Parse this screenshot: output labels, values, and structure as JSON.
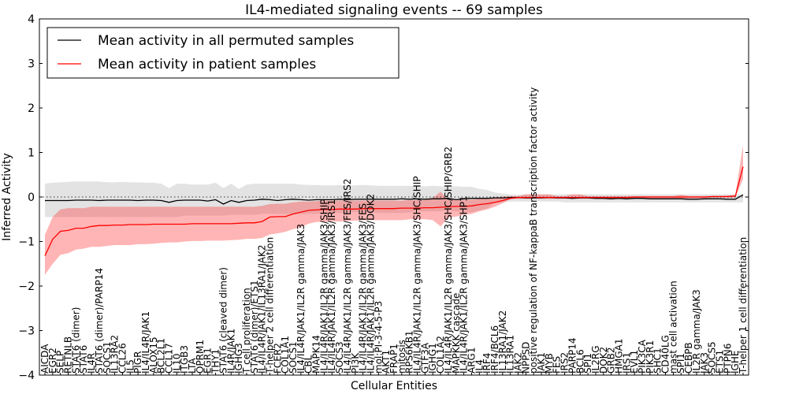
{
  "chart_data": {
    "type": "line",
    "title": "IL4-mediated signaling events -- 69 samples",
    "xlabel": "Cellular Entities",
    "ylabel": "Inferred Activity",
    "ylim": [
      -4,
      4
    ],
    "yticks": [
      -4,
      -3,
      -2,
      -1,
      0,
      1,
      2,
      3,
      4
    ],
    "ytick_labels": [
      "−4",
      "−3",
      "−2",
      "−1",
      "0",
      "1",
      "2",
      "3",
      "4"
    ],
    "grid": false,
    "reference_line": {
      "y": 0,
      "style": "dotted"
    },
    "legend": {
      "position": "top-left",
      "entries": [
        {
          "label": "Mean activity in all permuted samples",
          "color": "#000000"
        },
        {
          "label": "Mean activity in patient samples",
          "color": "#ff0000"
        }
      ]
    },
    "categories": [
      "AICDA",
      "EGR2",
      "SELP",
      "RETNLB",
      "STAT6 (dimer)",
      "STAT6",
      "IL4R",
      "STAT6 (dimer)/PARP14",
      "SOCS1",
      "IL13RA2",
      "CCL26",
      "IL5",
      "PIGR",
      "IL4/IL4R/JAK1",
      "ALOX15",
      "BCL2L1",
      "CCL17",
      "IL10",
      "ITGB3",
      "LTA",
      "OPRM1",
      "EGR1",
      "THY1",
      "STAT6 (cleaved dimer)",
      "IL4R/JAK1",
      "IGHG3",
      "T cell proliferation",
      "STAT6 (dimer)/ETS1",
      "IL4/IL4R/JAK1/IL13RA1/JAK2",
      "T-helper 2 cell differentiation",
      "FCER2",
      "COL1A1",
      "SOCS1",
      "IL4/IL4R/JAK1/IL2R gamma/JAK3",
      "CBL",
      "MAPK14",
      "IL4/IL4R/JAK1/IL2R gamma/JAK3/SHIP",
      "IL4/IL4R/JAK1/IL2R gamma/JAK3/IRS1",
      "SOCS3",
      "IL4/IL4R/JAK1/IL2R gamma/JAK3/FES/IRS2",
      "PI3K",
      "IL4/IL4R/JAK1/IL2R gamma/JAK3/FES",
      "IL4/IL4R/JAK1/IL2R gamma/JAK3/DOK2",
      "mol:PI-3-4-5-P3",
      "AKT1",
      "FRAP1",
      "mitosis",
      "RPS6KB1",
      "IL4/IL4R/JAK1/IL2R gamma/JAK3/SHC/SHIP",
      "GTF3A",
      "IGHG1",
      "COL1A2",
      "IL4/IL4R/JAK1/IL2R gamma/JAK3/SHC/SHIP/GRB2",
      "MAPKKK cascade",
      "IL4/IL4R/JAK1/IL2R gamma/JAK3/SHP1",
      "ARG1",
      "IL4",
      "IRF4",
      "IRF4/BCL6",
      "IL13RA1/JAK2",
      "IL13RA1",
      "JAK2",
      "NPPSD",
      "positive regulation of NF-kappaB transcription factor activity",
      "JAK1",
      "MYB",
      "FES",
      "IRS2",
      "PARP14",
      "BCL6",
      "SPI1",
      "IL2RG",
      "DOK2",
      "GRB2",
      "HMGA1",
      "IRS1",
      "EVL1",
      "PIK3CA",
      "PIK3R1",
      "SHC1",
      "CD40LG",
      "mast cell activation",
      "SPI1",
      "CEBPB",
      "IL2R gamma/JAK3",
      "JAK3",
      "SOCS5",
      "ETS1",
      "PTPN6",
      "IGHE",
      "T-helper 1 cell differentiation"
    ],
    "series": [
      {
        "name": "Mean activity in all permuted samples",
        "color": "#000000",
        "values": [
          -0.08,
          -0.08,
          -0.08,
          -0.08,
          -0.07,
          -0.07,
          -0.07,
          -0.08,
          -0.07,
          -0.07,
          -0.07,
          -0.07,
          -0.08,
          -0.07,
          -0.07,
          -0.08,
          -0.12,
          -0.08,
          -0.07,
          -0.07,
          -0.07,
          -0.09,
          -0.06,
          -0.16,
          -0.08,
          -0.12,
          -0.08,
          -0.07,
          -0.05,
          -0.06,
          -0.08,
          -0.06,
          -0.05,
          -0.06,
          -0.07,
          -0.06,
          -0.06,
          -0.06,
          -0.05,
          -0.06,
          -0.05,
          -0.05,
          -0.05,
          -0.05,
          -0.05,
          -0.05,
          -0.04,
          -0.05,
          -0.04,
          -0.05,
          -0.04,
          -0.04,
          -0.03,
          -0.06,
          -0.04,
          -0.03,
          -0.03,
          -0.03,
          -0.02,
          -0.02,
          -0.01,
          -0.01,
          -0.02,
          -0.02,
          -0.02,
          -0.01,
          -0.02,
          -0.02,
          -0.03,
          -0.02,
          -0.02,
          -0.03,
          -0.03,
          -0.04,
          -0.03,
          -0.04,
          -0.03,
          -0.03,
          -0.04,
          -0.04,
          -0.04,
          -0.04,
          -0.04,
          -0.05,
          -0.05,
          -0.04,
          -0.04,
          -0.04,
          -0.05,
          -0.05,
          0.05
        ],
        "band": {
          "upper": [
            0.3,
            0.32,
            0.33,
            0.34,
            0.35,
            0.35,
            0.35,
            0.35,
            0.33,
            0.33,
            0.34,
            0.33,
            0.33,
            0.32,
            0.32,
            0.3,
            0.2,
            0.3,
            0.3,
            0.28,
            0.28,
            0.28,
            0.32,
            0.2,
            0.3,
            0.18,
            0.28,
            0.3,
            0.3,
            0.3,
            0.3,
            0.3,
            0.3,
            0.28,
            0.27,
            0.27,
            0.26,
            0.26,
            0.27,
            0.26,
            0.26,
            0.27,
            0.26,
            0.25,
            0.25,
            0.25,
            0.25,
            0.25,
            0.24,
            0.24,
            0.25,
            0.24,
            0.24,
            0.24,
            0.23,
            0.23,
            0.18,
            0.16,
            0.1,
            0.08,
            0.06,
            0.05,
            0.06,
            0.06,
            0.06,
            0.06,
            0.06,
            0.06,
            0.06,
            0.06,
            0.06,
            0.06,
            0.06,
            0.06,
            0.06,
            0.06,
            0.06,
            0.06,
            0.06,
            0.06,
            0.06,
            0.06,
            0.06,
            0.06,
            0.06,
            0.06,
            0.06,
            0.06,
            0.06,
            0.06,
            0.06
          ],
          "lower": [
            -0.45,
            -0.45,
            -0.45,
            -0.45,
            -0.45,
            -0.45,
            -0.45,
            -0.45,
            -0.45,
            -0.45,
            -0.45,
            -0.45,
            -0.45,
            -0.45,
            -0.45,
            -0.45,
            -0.45,
            -0.45,
            -0.42,
            -0.42,
            -0.42,
            -0.42,
            -0.42,
            -0.42,
            -0.4,
            -0.4,
            -0.4,
            -0.4,
            -0.38,
            -0.38,
            -0.38,
            -0.38,
            -0.38,
            -0.38,
            -0.38,
            -0.38,
            -0.36,
            -0.36,
            -0.36,
            -0.34,
            -0.34,
            -0.34,
            -0.34,
            -0.36,
            -0.36,
            -0.36,
            -0.36,
            -0.34,
            -0.32,
            -0.32,
            -0.32,
            -0.32,
            -0.3,
            -0.32,
            -0.34,
            -0.34,
            -0.3,
            -0.26,
            -0.14,
            -0.12,
            -0.1,
            -0.1,
            -0.1,
            -0.1,
            -0.1,
            -0.1,
            -0.1,
            -0.12,
            -0.12,
            -0.12,
            -0.12,
            -0.12,
            -0.12,
            -0.12,
            -0.12,
            -0.12,
            -0.12,
            -0.12,
            -0.12,
            -0.12,
            -0.12,
            -0.12,
            -0.12,
            -0.12,
            -0.12,
            -0.12,
            -0.12,
            -0.12,
            -0.12,
            -0.12,
            -0.12
          ]
        }
      },
      {
        "name": "Mean activity in patient samples",
        "color": "#ff0000",
        "values": [
          -1.32,
          -0.95,
          -0.77,
          -0.75,
          -0.7,
          -0.7,
          -0.66,
          -0.64,
          -0.64,
          -0.63,
          -0.63,
          -0.62,
          -0.62,
          -0.62,
          -0.61,
          -0.61,
          -0.61,
          -0.61,
          -0.61,
          -0.6,
          -0.6,
          -0.6,
          -0.6,
          -0.6,
          -0.6,
          -0.59,
          -0.58,
          -0.58,
          -0.55,
          -0.45,
          -0.44,
          -0.44,
          -0.38,
          -0.34,
          -0.3,
          -0.29,
          -0.28,
          -0.28,
          -0.27,
          -0.27,
          -0.27,
          -0.26,
          -0.26,
          -0.26,
          -0.26,
          -0.26,
          -0.25,
          -0.25,
          -0.25,
          -0.24,
          -0.24,
          -0.23,
          -0.22,
          -0.21,
          -0.21,
          -0.2,
          -0.17,
          -0.15,
          -0.12,
          -0.08,
          -0.03,
          -0.01,
          -0.01,
          -0.01,
          -0.01,
          -0.01,
          -0.01,
          -0.01,
          -0.01,
          -0.01,
          -0.01,
          -0.01,
          -0.01,
          -0.01,
          -0.01,
          -0.01,
          0.0,
          0.0,
          0.0,
          0.0,
          0.0,
          0.0,
          0.0,
          0.0,
          0.0,
          0.0,
          0.01,
          0.01,
          0.01,
          0.02,
          0.68
        ],
        "band": {
          "upper": [
            -0.85,
            -0.45,
            -0.28,
            -0.25,
            -0.25,
            -0.25,
            -0.22,
            -0.22,
            -0.22,
            -0.22,
            -0.22,
            -0.22,
            -0.22,
            -0.22,
            -0.22,
            -0.22,
            -0.22,
            -0.22,
            -0.22,
            -0.22,
            -0.22,
            -0.22,
            -0.22,
            -0.22,
            -0.22,
            -0.22,
            -0.22,
            -0.22,
            -0.2,
            -0.16,
            -0.15,
            -0.15,
            -0.12,
            -0.1,
            -0.1,
            -0.09,
            -0.08,
            -0.08,
            -0.08,
            -0.08,
            -0.08,
            -0.08,
            -0.08,
            -0.08,
            -0.08,
            -0.08,
            -0.08,
            -0.07,
            -0.07,
            -0.07,
            -0.02,
            0.12,
            -0.06,
            -0.06,
            -0.06,
            -0.06,
            -0.04,
            -0.04,
            -0.02,
            0.01,
            0.02,
            0.02,
            0.06,
            0.06,
            0.06,
            0.06,
            0.02,
            0.02,
            0.06,
            0.06,
            0.02,
            0.02,
            0.02,
            0.02,
            0.02,
            0.02,
            0.02,
            0.02,
            0.02,
            0.02,
            0.02,
            0.02,
            0.05,
            0.02,
            0.02,
            0.02,
            0.02,
            0.02,
            0.03,
            0.05,
            1.18
          ],
          "lower": [
            -1.75,
            -1.5,
            -1.3,
            -1.26,
            -1.18,
            -1.16,
            -1.12,
            -1.12,
            -1.1,
            -1.08,
            -1.08,
            -1.08,
            -1.06,
            -1.06,
            -1.05,
            -1.03,
            -1.02,
            -1.02,
            -1.0,
            -0.99,
            -0.99,
            -0.98,
            -0.98,
            -0.98,
            -0.97,
            -0.96,
            -0.94,
            -0.94,
            -0.92,
            -0.84,
            -0.82,
            -0.78,
            -0.72,
            -0.68,
            -0.6,
            -0.56,
            -0.56,
            -0.55,
            -0.55,
            -0.54,
            -0.53,
            -0.52,
            -0.52,
            -0.52,
            -0.52,
            -0.52,
            -0.52,
            -0.5,
            -0.5,
            -0.5,
            -0.52,
            -0.66,
            -0.46,
            -0.44,
            -0.4,
            -0.38,
            -0.32,
            -0.28,
            -0.22,
            -0.14,
            -0.05,
            -0.04,
            -0.04,
            -0.04,
            -0.04,
            -0.04,
            -0.04,
            -0.04,
            -0.04,
            -0.04,
            -0.04,
            -0.04,
            -0.04,
            -0.04,
            -0.04,
            -0.04,
            -0.03,
            -0.03,
            -0.03,
            -0.03,
            -0.03,
            -0.03,
            -0.03,
            -0.03,
            -0.03,
            -0.03,
            -0.02,
            -0.02,
            -0.02,
            -0.01,
            0.4
          ]
        }
      }
    ]
  }
}
